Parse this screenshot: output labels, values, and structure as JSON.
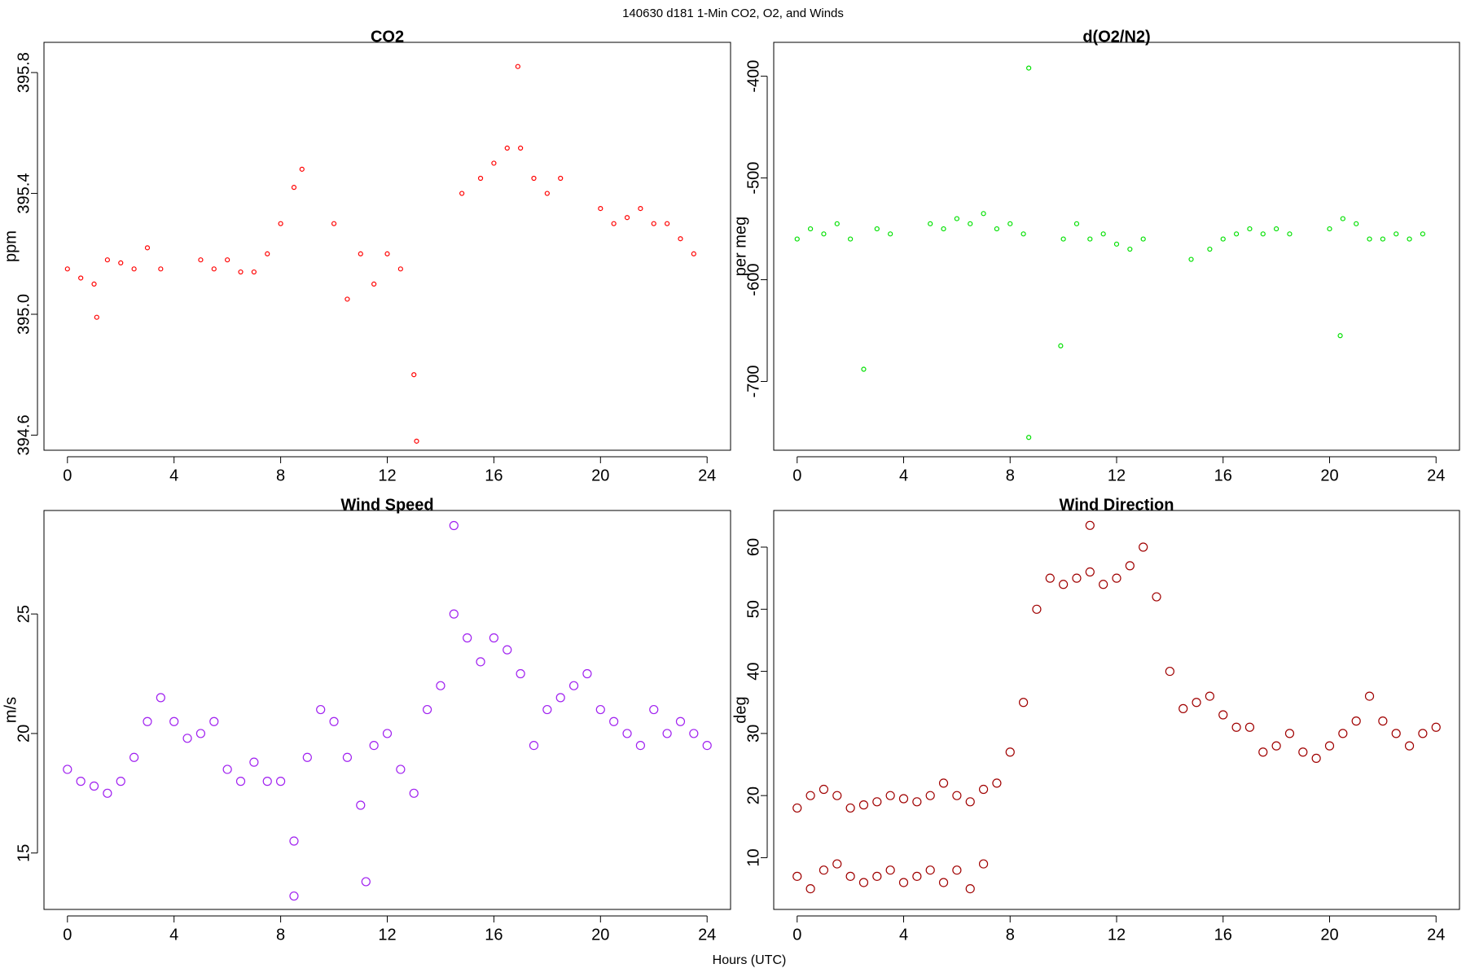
{
  "title": "140630   d181   1-Min CO2, O2, and Winds",
  "x_label": "Hours (UTC)",
  "chart_data": [
    {
      "type": "scatter",
      "title": "CO2",
      "y_label": "ppm",
      "color": "#ff0000",
      "x": [
        0,
        0.5,
        1,
        1.1,
        1.5,
        2,
        2.5,
        3,
        3.5,
        5,
        5.5,
        6,
        6.5,
        7,
        7.5,
        8,
        8.5,
        8.8,
        10,
        10.5,
        11,
        11.5,
        12,
        12.5,
        13,
        13.1,
        14.8,
        15.5,
        16,
        16.5,
        16.9,
        17,
        17.5,
        18,
        18.5,
        20,
        20.5,
        21,
        21.5,
        22,
        22.5,
        23,
        23.5
      ],
      "values": [
        395.15,
        395.12,
        395.1,
        394.99,
        395.18,
        395.17,
        395.15,
        395.22,
        395.15,
        395.18,
        395.15,
        395.18,
        395.14,
        395.14,
        395.2,
        395.3,
        395.42,
        395.48,
        395.3,
        395.05,
        395.2,
        395.1,
        395.2,
        395.15,
        394.8,
        394.58,
        395.4,
        395.45,
        395.5,
        395.55,
        395.82,
        395.55,
        395.45,
        395.4,
        395.45,
        395.35,
        395.3,
        395.32,
        395.35,
        395.3,
        395.3,
        395.25,
        395.2
      ],
      "xlim": [
        -0.88,
        24.88
      ],
      "xticks": [
        0,
        4,
        8,
        12,
        16,
        20,
        24
      ],
      "ylim": [
        394.55,
        395.9
      ],
      "yticks": [
        394.6,
        {
          "value": 395.0,
          "label": "395.0"
        },
        395.4,
        395.8
      ]
    },
    {
      "type": "scatter",
      "title": "d(O2/N2)",
      "y_label": "per meg",
      "color": "#00e000",
      "x": [
        0,
        0.5,
        1,
        1.5,
        2,
        2.5,
        3,
        3.5,
        5,
        5.5,
        6,
        6.5,
        7,
        7.5,
        8,
        8.5,
        8.7,
        8.7,
        9.9,
        10,
        10.5,
        11,
        11.5,
        12,
        12.5,
        13,
        14.8,
        15.5,
        16,
        16.5,
        17,
        17.5,
        18,
        18.5,
        20,
        20.4,
        20.5,
        21,
        21.5,
        22,
        22.5,
        23,
        23.5
      ],
      "values": [
        -560,
        -550,
        -555,
        -545,
        -560,
        -688,
        -550,
        -555,
        -545,
        -550,
        -540,
        -545,
        -535,
        -550,
        -545,
        -555,
        -392,
        -755,
        -665,
        -560,
        -545,
        -560,
        -555,
        -565,
        -570,
        -560,
        -580,
        -570,
        -560,
        -555,
        -550,
        -555,
        -550,
        -555,
        -550,
        -655,
        -540,
        -545,
        -560,
        -560,
        -555,
        -560,
        -555
      ],
      "xlim": [
        -0.88,
        24.88
      ],
      "xticks": [
        0,
        4,
        8,
        12,
        16,
        20,
        24
      ],
      "ylim": [
        -767.6,
        -366.7
      ],
      "yticks": [
        -700,
        -600,
        -500,
        -400
      ]
    },
    {
      "type": "scatter",
      "title": "Wind Speed",
      "y_label": "m/s",
      "color": "#a020f0",
      "x": [
        0,
        0.5,
        1,
        1.5,
        2,
        2.5,
        3,
        3.5,
        4,
        4.5,
        5,
        5.5,
        6,
        6.5,
        7,
        7.5,
        8,
        8.5,
        8.5,
        9,
        9.5,
        10,
        10.5,
        11,
        11.2,
        11.5,
        12,
        12.5,
        13,
        13.5,
        14,
        14.5,
        14.5,
        15,
        15.5,
        16,
        16.5,
        17,
        17.5,
        18,
        18.5,
        19,
        19.5,
        20,
        20.5,
        21,
        21.5,
        22,
        22.5,
        23,
        23.5,
        24
      ],
      "values": [
        18.5,
        18,
        17.8,
        17.5,
        18,
        19,
        20.5,
        21.5,
        20.5,
        19.8,
        20,
        20.5,
        18.5,
        18,
        18.8,
        18,
        18,
        15.5,
        13.2,
        19,
        21,
        20.5,
        19,
        17,
        13.8,
        19.5,
        20,
        18.5,
        17.5,
        21,
        22,
        25,
        28.7,
        24,
        23,
        24,
        23.5,
        22.5,
        19.5,
        21,
        21.5,
        22,
        22.5,
        21,
        20.5,
        20,
        19.5,
        21,
        20,
        20.5,
        20,
        19.5
      ],
      "xlim": [
        -0.88,
        24.88
      ],
      "xticks": [
        0,
        4,
        8,
        12,
        16,
        20,
        24
      ],
      "ylim": [
        12.64,
        29.33
      ],
      "yticks": [
        15,
        20,
        25
      ]
    },
    {
      "type": "scatter",
      "title": "Wind Direction",
      "y_label": "deg",
      "color": "#a00000",
      "x": [
        0,
        0.5,
        1,
        1.5,
        2,
        2.5,
        3,
        3.5,
        4,
        4.5,
        5,
        5.5,
        6,
        6.5,
        7,
        7.5,
        8,
        8.5,
        9,
        9.5,
        10,
        10.5,
        11,
        11,
        11.5,
        12,
        12.5,
        13,
        13.5,
        14,
        14.5,
        15,
        15.5,
        16,
        16.5,
        17,
        17.5,
        18,
        18.5,
        19,
        19.5,
        20,
        20.5,
        21,
        21.5,
        22,
        22.5,
        23,
        23.5,
        24,
        0,
        0.5,
        1,
        1.5,
        2,
        2.5,
        3,
        3.5,
        4,
        4.5,
        5,
        5.5,
        6,
        6.5,
        7
      ],
      "values": [
        18,
        20,
        21,
        20,
        18,
        18.5,
        19,
        20,
        19.5,
        19,
        20,
        22,
        20,
        19,
        21,
        22,
        27,
        35,
        50,
        55,
        54,
        55,
        56,
        63.5,
        54,
        55,
        57,
        60,
        52,
        40,
        34,
        35,
        36,
        33,
        31,
        31,
        27,
        28,
        30,
        27,
        26,
        28,
        30,
        32,
        36,
        32,
        30,
        28,
        30,
        31,
        7,
        5,
        8,
        9,
        7,
        6,
        7,
        8,
        6,
        7,
        8,
        6,
        8,
        5,
        9
      ],
      "xlim": [
        -0.88,
        24.88
      ],
      "xticks": [
        0,
        4,
        8,
        12,
        16,
        20,
        24
      ],
      "ylim": [
        1.67,
        65.9
      ],
      "yticks": [
        10,
        20,
        30,
        40,
        50,
        60
      ]
    }
  ]
}
